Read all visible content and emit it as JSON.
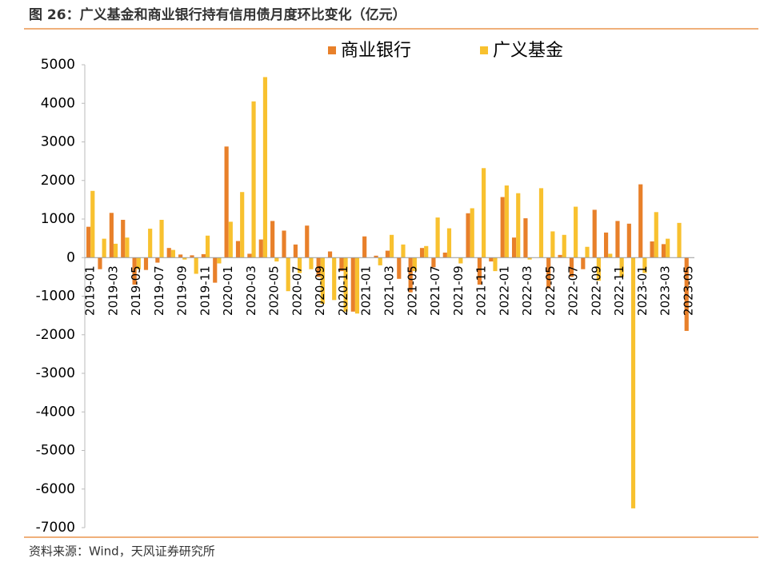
{
  "chart_data": {
    "type": "bar",
    "title": "图 26：广义基金和商业银行持有信用债月度环比变化（亿元）",
    "source": "资料来源：Wind，天风证券研究所",
    "categories": [
      "2019-01",
      null,
      "2019-03",
      null,
      "2019-05",
      null,
      "2019-07",
      null,
      "2019-09",
      null,
      "2019-11",
      null,
      "2020-01",
      null,
      "2020-03",
      null,
      "2020-05",
      null,
      "2020-07",
      null,
      "2020-09",
      null,
      "2020-11",
      null,
      "2021-01",
      null,
      "2021-03",
      null,
      "2021-05",
      null,
      "2021-07",
      null,
      "2021-09",
      null,
      "2021-11",
      null,
      "2022-01",
      null,
      "2022-03",
      null,
      "2022-05",
      null,
      "2022-07",
      null,
      "2022-09",
      null,
      "2022-11",
      null,
      "2023-01",
      null,
      "2023-03",
      null,
      "2023-05"
    ],
    "series": [
      {
        "name": "商业银行",
        "color": "#e8802a",
        "values": [
          800,
          -300,
          1160,
          980,
          -700,
          -320,
          -130,
          250,
          80,
          60,
          90,
          -650,
          2880,
          430,
          100,
          470,
          950,
          700,
          340,
          830,
          -500,
          160,
          -350,
          -1400,
          550,
          50,
          180,
          -550,
          -900,
          250,
          -250,
          130,
          0,
          1150,
          -700,
          -100,
          1570,
          520,
          1020,
          0,
          -800,
          70,
          -500,
          -300,
          1240,
          650,
          950,
          880,
          1900,
          420,
          350,
          0,
          -1900
        ]
      },
      {
        "name": "广义基金",
        "color": "#f8c12f",
        "values": [
          1730,
          490,
          360,
          520,
          -300,
          750,
          980,
          200,
          -50,
          -420,
          570,
          -150,
          930,
          1700,
          4050,
          4680,
          -100,
          -870,
          -400,
          -300,
          -1200,
          -1100,
          -1400,
          -1450,
          0,
          -200,
          590,
          340,
          -350,
          300,
          1040,
          760,
          -150,
          1280,
          2320,
          -350,
          1870,
          1670,
          -50,
          1800,
          680,
          590,
          1320,
          280,
          -600,
          100,
          -500,
          -6500,
          -400,
          1180,
          490,
          900,
          0
        ]
      }
    ],
    "ylim": [
      -7000,
      5000
    ],
    "yticks": [
      -7000,
      -6000,
      -5000,
      -4000,
      -3000,
      -2000,
      -1000,
      0,
      1000,
      2000,
      3000,
      4000,
      5000
    ],
    "legend": "top"
  }
}
